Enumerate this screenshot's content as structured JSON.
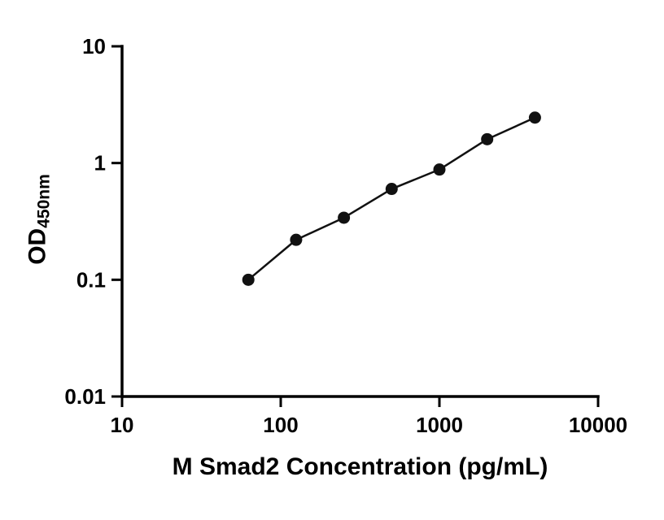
{
  "figure": {
    "background": "#ffffff",
    "xlabel": "M Smad2 Concentration (pg/mL)",
    "ylabel_main": "OD",
    "ylabel_sub": "450nm"
  },
  "chart_data": {
    "type": "scatter",
    "x": [
      62.5,
      125,
      250,
      500,
      1000,
      2000,
      4000
    ],
    "y": [
      0.1,
      0.22,
      0.34,
      0.6,
      0.88,
      1.6,
      2.45
    ],
    "line": true,
    "title": "",
    "xlabel": "M Smad2 Concentration (pg/mL)",
    "ylabel": "OD450nm",
    "xscale": "log",
    "yscale": "log",
    "xlim": [
      10,
      10000
    ],
    "ylim": [
      0.01,
      10
    ],
    "x_ticks": [
      10,
      100,
      1000,
      10000
    ],
    "x_tick_labels": [
      "10",
      "100",
      "1000",
      "10000"
    ],
    "y_ticks": [
      0.01,
      0.1,
      1,
      10
    ],
    "y_tick_labels": [
      "0.01",
      "0.1",
      "1",
      "10"
    ],
    "grid": false,
    "legend": "none",
    "marker_color": "#111111",
    "line_color": "#111111",
    "axis_color": "#000000"
  }
}
